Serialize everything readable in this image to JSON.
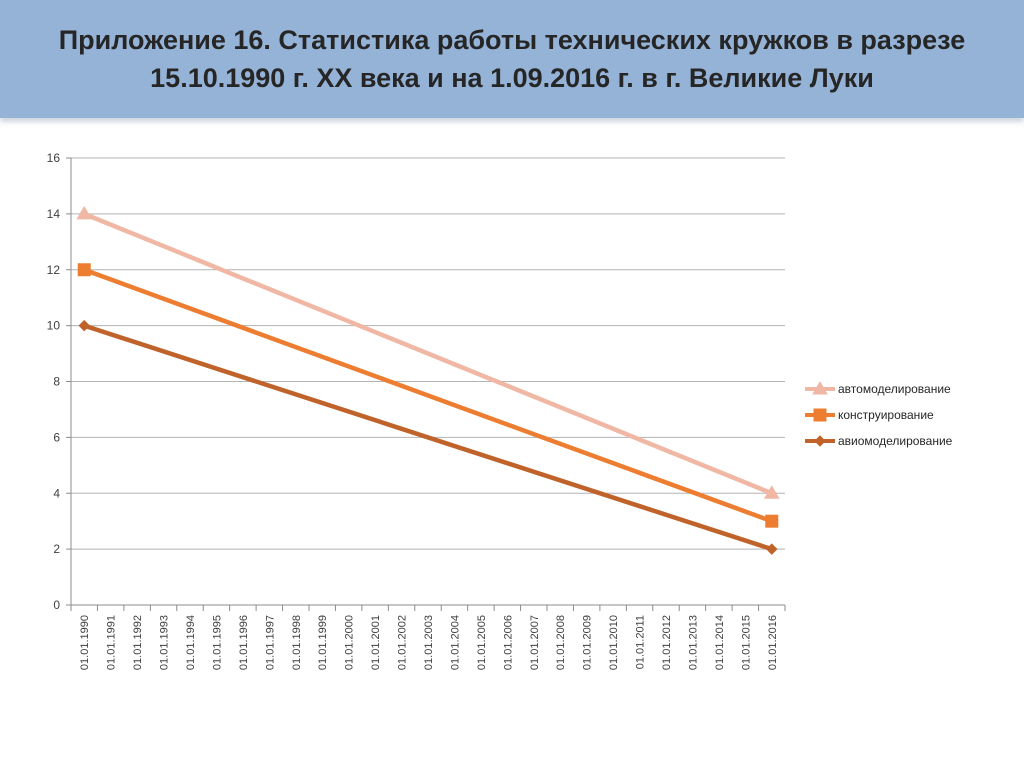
{
  "slide": {
    "title": "Приложение 16.  Статистика работы технических кружков в разрезе 15.10.1990 г. XX века и на 1.09.2016 г. в г. Великие Луки",
    "header_color": "#95b3d7"
  },
  "chart_data": {
    "type": "line",
    "title": "",
    "xlabel": "",
    "ylabel": "",
    "ylim": [
      0,
      16
    ],
    "y_ticks": [
      0,
      2,
      4,
      6,
      8,
      10,
      12,
      14,
      16
    ],
    "grid": true,
    "legend_position": "right",
    "categories": [
      "01.01.1990",
      "01.01.1991",
      "01.01.1992",
      "01.01.1993",
      "01.01.1994",
      "01.01.1995",
      "01.01.1996",
      "01.01.1997",
      "01.01.1998",
      "01.01.1999",
      "01.01.2000",
      "01.01.2001",
      "01.01.2002",
      "01.01.2003",
      "01.01.2004",
      "01.01.2005",
      "01.01.2006",
      "01.01.2007",
      "01.01.2008",
      "01.01.2009",
      "01.01.2010",
      "01.01.2011",
      "01.01.2012",
      "01.01.2013",
      "01.01.2014",
      "01.01.2015",
      "01.01.2016"
    ],
    "series": [
      {
        "name": "автомоделирование",
        "marker": "triangle",
        "color": "#f0b8a4",
        "points": [
          {
            "x": "01.01.1990",
            "y": 14
          },
          {
            "x": "01.01.2016",
            "y": 4
          }
        ]
      },
      {
        "name": "конструирование",
        "marker": "square",
        "color": "#ed7d31",
        "points": [
          {
            "x": "01.01.1990",
            "y": 12
          },
          {
            "x": "01.01.2016",
            "y": 3
          }
        ]
      },
      {
        "name": "авиомоделирование",
        "marker": "diamond",
        "color": "#c0632b",
        "points": [
          {
            "x": "01.01.1990",
            "y": 10
          },
          {
            "x": "01.01.2016",
            "y": 2
          }
        ]
      }
    ]
  }
}
